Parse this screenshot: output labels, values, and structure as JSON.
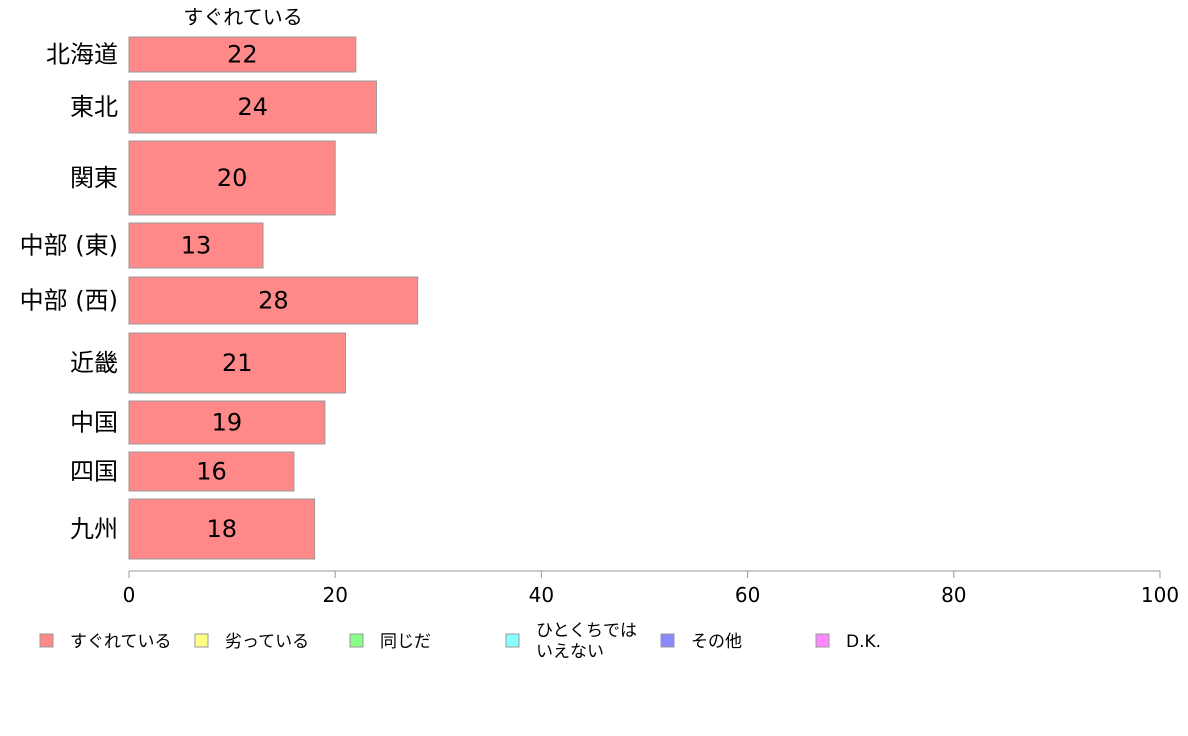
{
  "chart_data": {
    "type": "bar",
    "orientation": "horizontal",
    "stacked": true,
    "column_title": "すぐれている",
    "categories": [
      "北海道",
      "東北",
      "関東",
      "中部 (東)",
      "中部 (西)",
      "近畿",
      "中国",
      "四国",
      "九州"
    ],
    "series": [
      {
        "name": "すぐれている",
        "values": [
          22,
          24,
          20,
          13,
          28,
          21,
          19,
          16,
          18
        ],
        "color": "#ff8888"
      }
    ],
    "xlim": [
      0,
      100
    ],
    "xticks": [
      "0",
      "20",
      "40",
      "60",
      "80",
      "100"
    ],
    "grid": false,
    "legend_position": "bottom",
    "legend": [
      {
        "label": "すぐれている",
        "color": "#ff8888"
      },
      {
        "label": "劣っている",
        "color": "#ffff88"
      },
      {
        "label": "同じだ",
        "color": "#88ff88"
      },
      {
        "label": "ひとくちでは\nいえない",
        "color": "#88ffff"
      },
      {
        "label": "その他",
        "color": "#8888ff"
      },
      {
        "label": "D.K.",
        "color": "#ff88ff"
      }
    ]
  }
}
